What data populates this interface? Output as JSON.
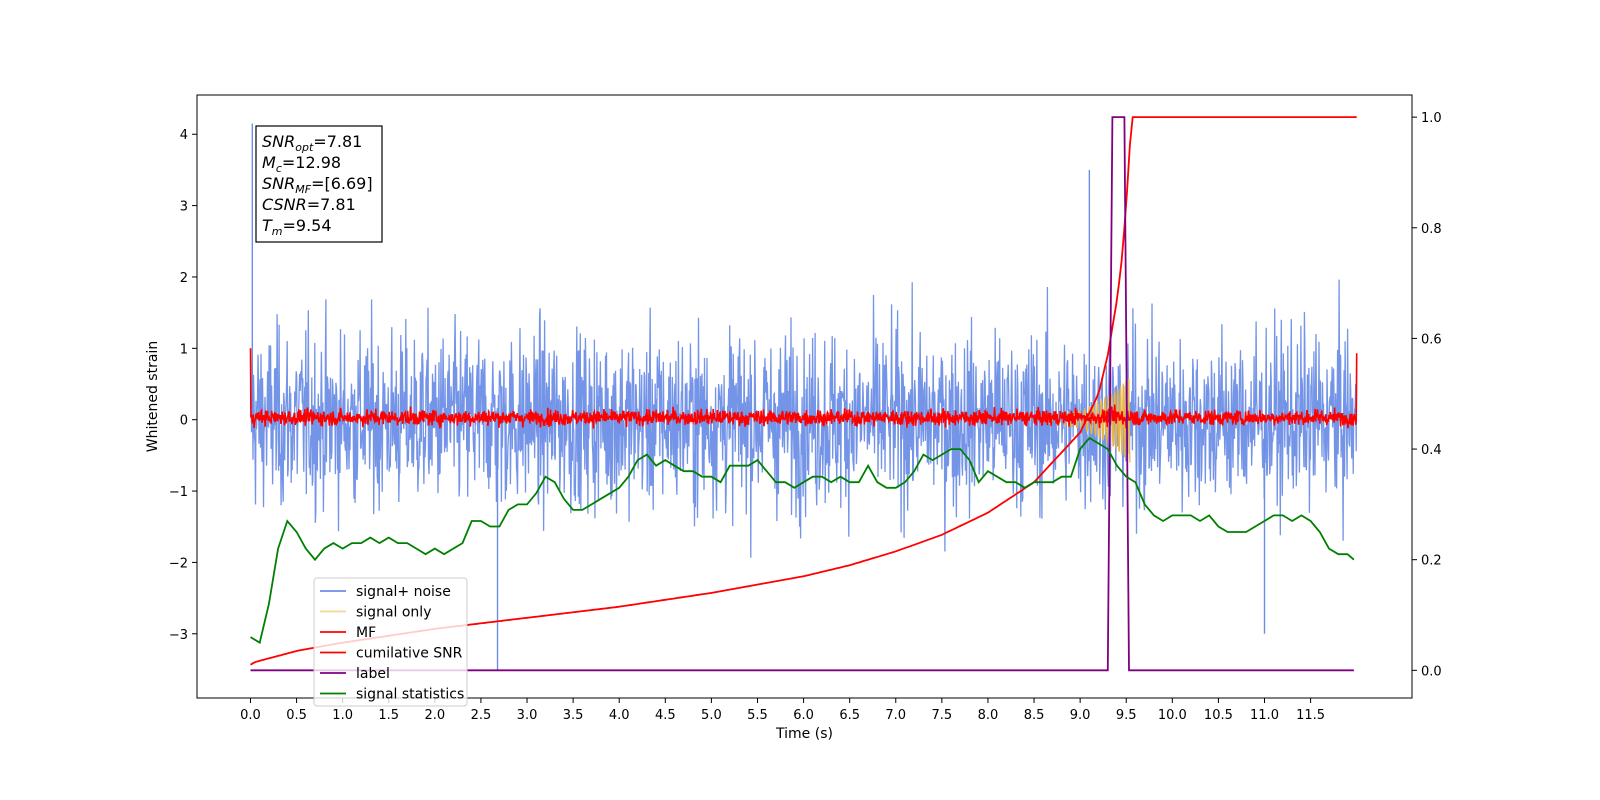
{
  "chart_data": {
    "type": "line",
    "xlabel": "Time (s)",
    "ylabel": "Whitened strain",
    "xlim": [
      -0.58,
      12.6
    ],
    "ylim_left": [
      -3.9,
      4.55
    ],
    "ylim_right": [
      -0.05,
      1.04
    ],
    "x_ticks": [
      "0.0",
      "0.5",
      "1.0",
      "1.5",
      "2.0",
      "2.5",
      "3.0",
      "3.5",
      "4.0",
      "4.5",
      "5.0",
      "5.5",
      "6.0",
      "6.5",
      "7.0",
      "7.5",
      "8.0",
      "8.5",
      "9.0",
      "9.5",
      "10.0",
      "10.5",
      "11.0",
      "11.5"
    ],
    "y_ticks_left": [
      "4",
      "3",
      "2",
      "1",
      "0",
      "−1",
      "−2",
      "−3"
    ],
    "y_ticks_right": [
      "1.0",
      "0.8",
      "0.6",
      "0.4",
      "0.2",
      "0.0"
    ],
    "grid": false,
    "legend_position": "lower-left",
    "legend": [
      {
        "label": "signal+ noise",
        "color": "#6d8ee6"
      },
      {
        "label": "signal only",
        "color": "#f5c76b"
      },
      {
        "label": "MF",
        "color": "#ff0000"
      },
      {
        "label": "cumilative SNR",
        "color": "#ff0000"
      },
      {
        "label": "label",
        "color": "#800080"
      },
      {
        "label": "signal statistics",
        "color": "#008000"
      }
    ],
    "annotation": [
      {
        "name": "SNR",
        "sub": "opt",
        "value": "=7.81"
      },
      {
        "name": "M",
        "sub": "c",
        "value": "=12.98"
      },
      {
        "name": "SNR",
        "sub": "MF",
        "value": "=[6.69]"
      },
      {
        "name": "CSNR",
        "sub": "",
        "value": "=7.81"
      },
      {
        "name": "T",
        "sub": "m",
        "value": "=9.54"
      }
    ],
    "series": [
      {
        "name": "signal+ noise",
        "axis": "left",
        "color": "#6d8ee6",
        "x_range": [
          0.0,
          12.0
        ],
        "band": [
          -1.3,
          1.3
        ],
        "notable_peaks": [
          [
            0.02,
            4.15
          ],
          [
            2.68,
            -3.5
          ],
          [
            9.1,
            3.5
          ],
          [
            11.0,
            -3.0
          ]
        ]
      },
      {
        "name": "MF",
        "axis": "left",
        "color": "#ff0000",
        "x_range": [
          0.0,
          12.0
        ],
        "band": [
          -0.18,
          0.25
        ],
        "start_value": 1.0,
        "end_value": 0.93
      },
      {
        "name": "signal only",
        "axis": "left",
        "color": "#f5c76b",
        "x": [
          8.6,
          8.8,
          9.0,
          9.1,
          9.2,
          9.3,
          9.4,
          9.5,
          9.54
        ],
        "amplitude": [
          0.05,
          0.08,
          0.12,
          0.18,
          0.25,
          0.32,
          0.42,
          0.55,
          0.6
        ]
      },
      {
        "name": "cumilative SNR",
        "axis": "right",
        "x": [
          0.0,
          0.05,
          0.5,
          1.0,
          2.0,
          3.0,
          4.0,
          5.0,
          6.0,
          6.5,
          7.0,
          7.5,
          8.0,
          8.5,
          9.0,
          9.2,
          9.3,
          9.4,
          9.45,
          9.5,
          9.54,
          9.56,
          12.0
        ],
        "y": [
          0.01,
          0.015,
          0.035,
          0.05,
          0.075,
          0.095,
          0.115,
          0.14,
          0.17,
          0.19,
          0.215,
          0.245,
          0.285,
          0.34,
          0.43,
          0.5,
          0.57,
          0.67,
          0.74,
          0.84,
          0.95,
          1.0,
          1.0
        ]
      },
      {
        "name": "label",
        "axis": "right",
        "x": [
          0.0,
          9.3,
          9.35,
          9.48,
          9.53,
          11.97
        ],
        "y": [
          0.0,
          0.0,
          1.0,
          1.0,
          0.0,
          0.0
        ]
      },
      {
        "name": "signal statistics",
        "axis": "right",
        "x": [
          0.0,
          0.1,
          0.2,
          0.3,
          0.4,
          0.5,
          0.6,
          0.7,
          0.8,
          0.9,
          1.0,
          1.1,
          1.2,
          1.3,
          1.4,
          1.5,
          1.6,
          1.7,
          1.8,
          1.9,
          2.0,
          2.1,
          2.2,
          2.3,
          2.4,
          2.5,
          2.6,
          2.7,
          2.8,
          2.9,
          3.0,
          3.1,
          3.2,
          3.3,
          3.4,
          3.5,
          3.6,
          3.7,
          3.8,
          3.9,
          4.0,
          4.1,
          4.2,
          4.3,
          4.4,
          4.5,
          4.6,
          4.7,
          4.8,
          4.9,
          5.0,
          5.1,
          5.2,
          5.3,
          5.4,
          5.5,
          5.6,
          5.7,
          5.8,
          5.9,
          6.0,
          6.1,
          6.2,
          6.3,
          6.4,
          6.5,
          6.6,
          6.7,
          6.8,
          6.9,
          7.0,
          7.1,
          7.2,
          7.3,
          7.4,
          7.5,
          7.6,
          7.7,
          7.8,
          7.9,
          8.0,
          8.1,
          8.2,
          8.3,
          8.4,
          8.5,
          8.6,
          8.7,
          8.8,
          8.9,
          9.0,
          9.1,
          9.2,
          9.3,
          9.4,
          9.5,
          9.6,
          9.7,
          9.8,
          9.9,
          10.0,
          10.1,
          10.2,
          10.3,
          10.4,
          10.5,
          10.6,
          10.7,
          10.8,
          10.9,
          11.0,
          11.1,
          11.2,
          11.3,
          11.4,
          11.5,
          11.6,
          11.7,
          11.8,
          11.9,
          11.97
        ],
        "y": [
          0.06,
          0.05,
          0.12,
          0.22,
          0.27,
          0.25,
          0.22,
          0.2,
          0.22,
          0.23,
          0.22,
          0.23,
          0.23,
          0.24,
          0.23,
          0.24,
          0.23,
          0.23,
          0.22,
          0.21,
          0.22,
          0.21,
          0.22,
          0.23,
          0.27,
          0.27,
          0.26,
          0.26,
          0.29,
          0.3,
          0.3,
          0.32,
          0.35,
          0.34,
          0.31,
          0.29,
          0.29,
          0.3,
          0.31,
          0.32,
          0.33,
          0.35,
          0.38,
          0.39,
          0.37,
          0.38,
          0.37,
          0.36,
          0.36,
          0.35,
          0.35,
          0.34,
          0.37,
          0.37,
          0.37,
          0.38,
          0.36,
          0.34,
          0.34,
          0.33,
          0.34,
          0.35,
          0.35,
          0.34,
          0.35,
          0.34,
          0.34,
          0.37,
          0.34,
          0.33,
          0.33,
          0.34,
          0.36,
          0.39,
          0.38,
          0.39,
          0.4,
          0.4,
          0.38,
          0.34,
          0.36,
          0.35,
          0.34,
          0.34,
          0.33,
          0.34,
          0.34,
          0.34,
          0.35,
          0.35,
          0.4,
          0.42,
          0.41,
          0.4,
          0.37,
          0.35,
          0.34,
          0.3,
          0.28,
          0.27,
          0.28,
          0.28,
          0.28,
          0.27,
          0.28,
          0.26,
          0.25,
          0.25,
          0.25,
          0.26,
          0.27,
          0.28,
          0.28,
          0.27,
          0.28,
          0.27,
          0.25,
          0.22,
          0.21,
          0.21,
          0.2
        ]
      }
    ]
  }
}
